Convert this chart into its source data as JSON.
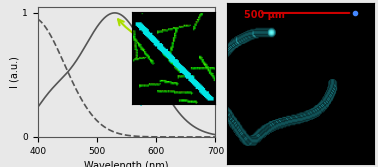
{
  "xlim": [
    400,
    700
  ],
  "ylim": [
    0,
    1.05
  ],
  "xlabel": "Wavelength (nm)",
  "ylabel": "I (a.u.)",
  "xticks": [
    400,
    500,
    600,
    700
  ],
  "yticks": [
    0,
    1
  ],
  "bg_color": "#e8e8e8",
  "plot_bg": "#e8e8e8",
  "solid_color": "#555555",
  "dashed_color": "#555555",
  "inset_bg": "#000000",
  "scale_bar_color": "#cc0000",
  "scale_bar_text": "500 μm",
  "arrow1_color": "#aadd00",
  "arrow2_color": "#00cccc"
}
